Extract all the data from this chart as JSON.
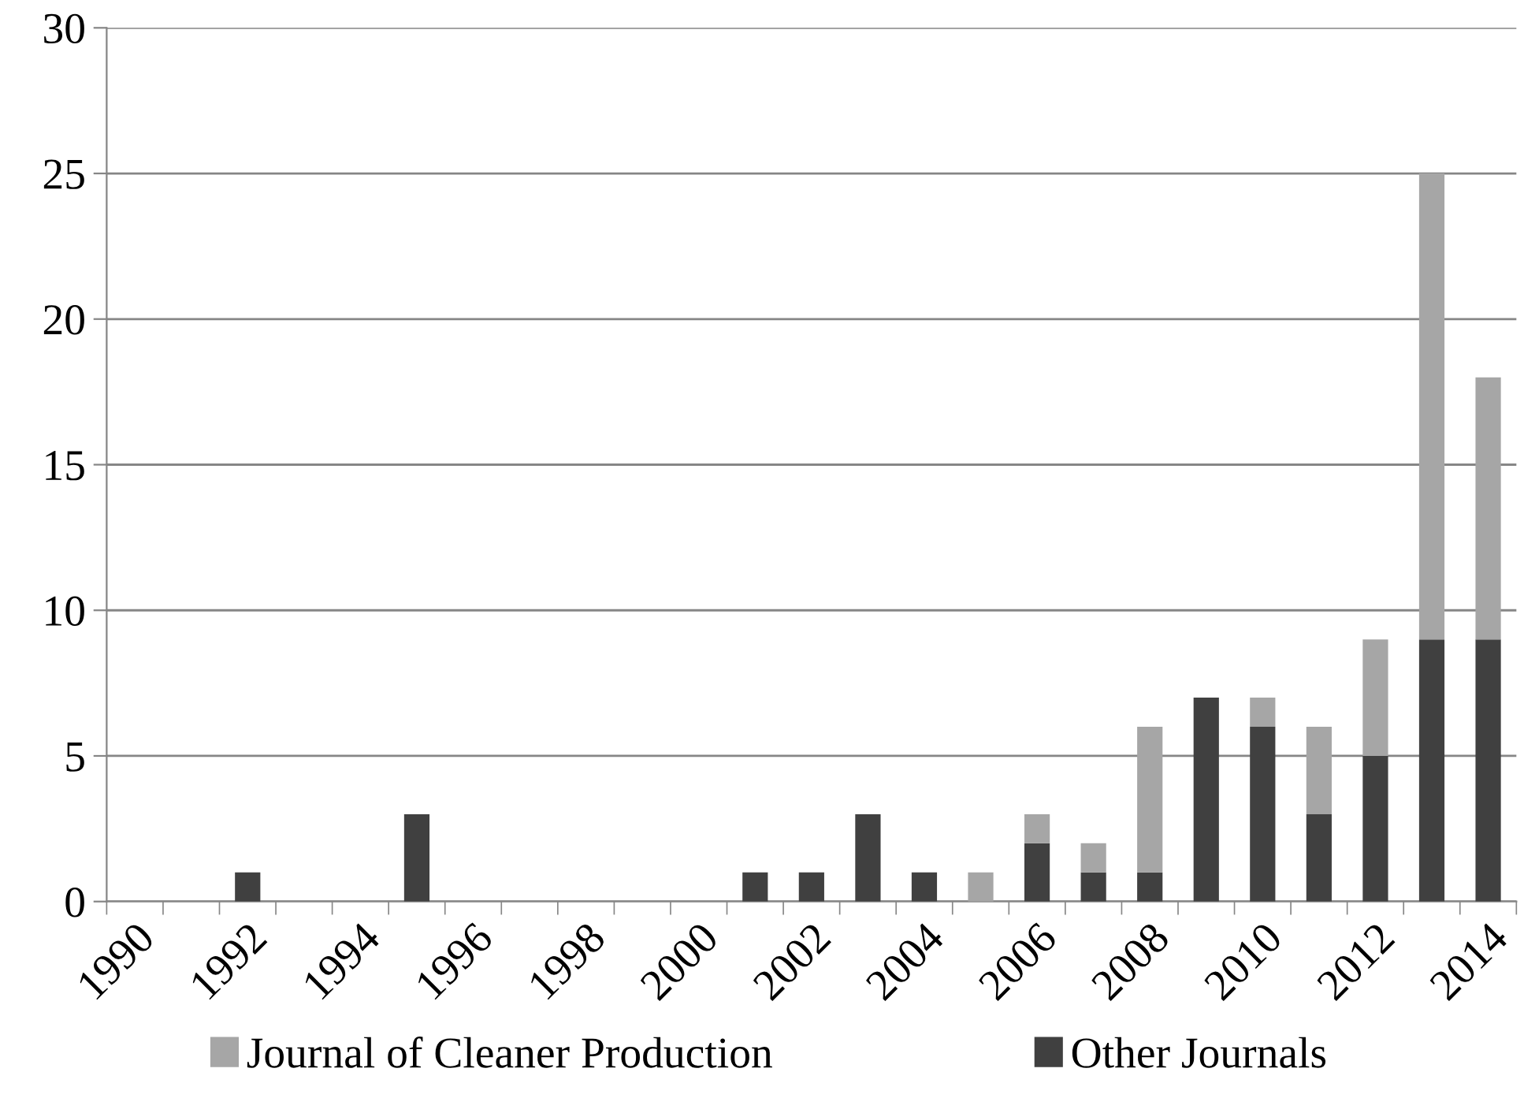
{
  "chart_data": {
    "type": "bar",
    "stacked": true,
    "categories": [
      "1990",
      null,
      "1992",
      null,
      "1994",
      null,
      "1996",
      null,
      "1998",
      null,
      "2000",
      null,
      "2002",
      null,
      "2004",
      null,
      "2006",
      null,
      "2008",
      null,
      "2010",
      null,
      "2012",
      null,
      "2014"
    ],
    "series": [
      {
        "name": "Other Journals",
        "color": "#404040",
        "values": [
          0,
          0,
          1,
          0,
          0,
          3,
          0,
          0,
          0,
          0,
          0,
          1,
          1,
          3,
          1,
          0,
          2,
          1,
          1,
          7,
          6,
          3,
          5,
          9,
          9
        ]
      },
      {
        "name": "Journal of Cleaner Production",
        "color": "#a6a6a6",
        "values": [
          0,
          0,
          0,
          0,
          0,
          0,
          0,
          0,
          0,
          0,
          0,
          0,
          0,
          0,
          0,
          1,
          1,
          1,
          5,
          0,
          1,
          3,
          4,
          16,
          9
        ]
      }
    ],
    "ylim": [
      0,
      30
    ],
    "yticks": [
      0,
      5,
      10,
      15,
      20,
      25,
      30
    ],
    "grid": "y",
    "legend": "bottom"
  }
}
